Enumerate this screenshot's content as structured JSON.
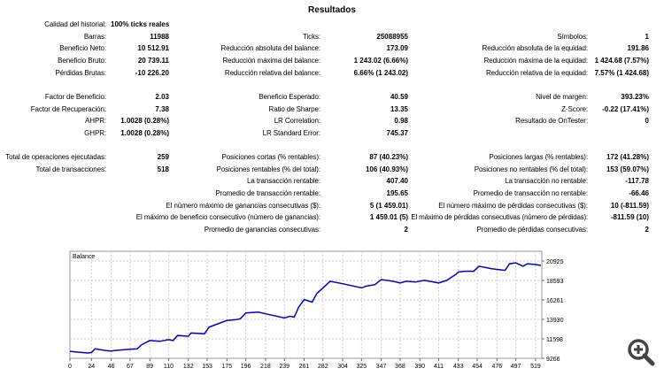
{
  "title": "Resultados",
  "rows": [
    {
      "y": 0,
      "cols": [
        {
          "label": "Calidad del historial:",
          "value": "100% ticks reales",
          "left": true
        }
      ]
    },
    {
      "y": 1,
      "cols": [
        {
          "label": "Barras:",
          "value": "11988"
        },
        {
          "label": "Ticks:",
          "value": "25088955"
        },
        {
          "label": "Símbolos:",
          "value": "1"
        }
      ]
    },
    {
      "y": 2,
      "cols": [
        {
          "label": "Beneficio Neto:",
          "value": "10 512.91"
        },
        {
          "label": "Reducción absoluta del balance:",
          "value": "173.09"
        },
        {
          "label": "Reducción absoluta de la equidad:",
          "value": "191.86"
        }
      ]
    },
    {
      "y": 3,
      "cols": [
        {
          "label": "Beneficio Bruto:",
          "value": "20 739.11"
        },
        {
          "label": "Reducción máxima del balance:",
          "value": "1 243.02 (6.66%)"
        },
        {
          "label": "Reducción máxima de la equidad:",
          "value": "1 424.68 (7.57%)"
        }
      ]
    },
    {
      "y": 4,
      "cols": [
        {
          "label": "Pérdidas Brutas:",
          "value": "-10 226.20"
        },
        {
          "label": "Reducción relativa del balance:",
          "value": "6.66% (1 243.02)"
        },
        {
          "label": "Reducción relativa de la equidad:",
          "value": "7.57% (1 424.68)"
        }
      ]
    },
    {
      "y": 6,
      "cols": [
        {
          "label": "Factor de Beneficio:",
          "value": "2.03"
        },
        {
          "label": "Beneficio Esperado:",
          "value": "40.59"
        },
        {
          "label": "Nivel de margen:",
          "value": "393.23%"
        }
      ]
    },
    {
      "y": 7,
      "cols": [
        {
          "label": "Factor de Recuperación:",
          "value": "7.38"
        },
        {
          "label": "Ratio de Sharpe:",
          "value": "13.35"
        },
        {
          "label": "Z-Score:",
          "value": "-0.22 (17.41%)"
        }
      ]
    },
    {
      "y": 8,
      "cols": [
        {
          "label": "AHPR:",
          "value": "1.0028 (0.28%)"
        },
        {
          "label": "LR Correlation:",
          "value": "0.98"
        },
        {
          "label": "Resultado de OnTester:",
          "value": "0"
        }
      ]
    },
    {
      "y": 9,
      "cols": [
        {
          "label": "GHPR:",
          "value": "1.0028 (0.28%)"
        },
        {
          "label": "LR Standard Error:",
          "value": "745.37"
        },
        null
      ]
    },
    {
      "y": 11,
      "cols": [
        {
          "label": "Total de operaciones ejecutadas:",
          "value": "259"
        },
        {
          "label": "Posiciones cortas (% rentables):",
          "value": "87 (40.23%)"
        },
        {
          "label": "Posiciones largas (% rentables):",
          "value": "172 (41.28%)"
        }
      ]
    },
    {
      "y": 12,
      "cols": [
        {
          "label": "Total de transacciones:",
          "value": "518"
        },
        {
          "label": "Posiciones rentables (% del total):",
          "value": "106 (40.93%)"
        },
        {
          "label": "Posiciones no rentables (% del total):",
          "value": "153 (59.07%)"
        }
      ]
    },
    {
      "y": 13,
      "cols": [
        null,
        {
          "label": "La transacción rentable:",
          "value": "407.40"
        },
        {
          "label": "La transacción no rentable:",
          "value": "-117.78"
        }
      ]
    },
    {
      "y": 14,
      "cols": [
        null,
        {
          "label": "Promedio de transacción rentable:",
          "value": "195.65"
        },
        {
          "label": "Promedio de transacción no rentable:",
          "value": "-66.46"
        }
      ]
    },
    {
      "y": 15,
      "cols": [
        null,
        {
          "label": "El número máximo de ganancias consecutivas ($):",
          "value": "5 (1 459.01)"
        },
        {
          "label": "El número máximo de pérdidas consecutivas ($):",
          "value": "10 (-811.59)"
        }
      ]
    },
    {
      "y": 16,
      "cols": [
        null,
        {
          "label": "El máximo de beneficio consecutivo (número de ganancias):",
          "value": "1 459.01 (5)"
        },
        {
          "label": "El máximo de pérdidas consecutivas (número de pérdidas):",
          "value": "-811.59 (10)"
        }
      ]
    },
    {
      "y": 17,
      "cols": [
        null,
        {
          "label": "Promedio de ganancias consecutivas:",
          "value": "2"
        },
        {
          "label": "Promedio de pérdidas consecutivas:",
          "value": "2"
        }
      ]
    }
  ],
  "chart_data": {
    "type": "line",
    "title": "Balance",
    "xlim": [
      0,
      526
    ],
    "ylim": [
      9266,
      22091
    ],
    "x_ticks": [
      0,
      24,
      46,
      67,
      89,
      110,
      132,
      153,
      175,
      196,
      218,
      239,
      261,
      282,
      304,
      325,
      347,
      368,
      390,
      411,
      433,
      454,
      476,
      497,
      519
    ],
    "y_ticks": [
      9266,
      11598,
      13930,
      16261,
      18593,
      20925
    ],
    "grid": true,
    "line_color": "#0000c8",
    "series": [
      {
        "x": [
          0,
          10,
          20,
          24,
          28,
          40,
          46,
          55,
          67,
          75,
          80,
          89,
          100,
          110,
          115,
          120,
          132,
          135,
          150,
          155,
          165,
          175,
          185,
          190,
          196,
          210,
          218,
          239,
          245,
          250,
          255,
          261,
          270,
          275,
          282,
          290,
          304,
          325,
          330,
          340,
          347,
          360,
          368,
          375,
          385,
          395,
          411,
          420,
          430,
          433,
          440,
          450,
          456,
          470,
          485,
          490,
          497,
          505,
          510,
          519,
          525
        ],
        "y": [
          10100,
          10000,
          9900,
          9950,
          10400,
          10200,
          10150,
          10250,
          10350,
          10400,
          10900,
          11400,
          11300,
          11500,
          11400,
          12000,
          11900,
          12300,
          12200,
          13000,
          13400,
          13800,
          13900,
          14000,
          14700,
          14800,
          14600,
          14100,
          14300,
          14200,
          15400,
          16300,
          16000,
          17000,
          17700,
          18500,
          18200,
          17700,
          17900,
          18100,
          18700,
          18500,
          18300,
          18500,
          18400,
          18600,
          18300,
          18600,
          19300,
          19600,
          19700,
          19700,
          20300,
          20000,
          19800,
          20600,
          20700,
          20300,
          20600,
          20500,
          20400
        ]
      }
    ]
  },
  "icons": {
    "zoom": "zoom-in-icon"
  }
}
